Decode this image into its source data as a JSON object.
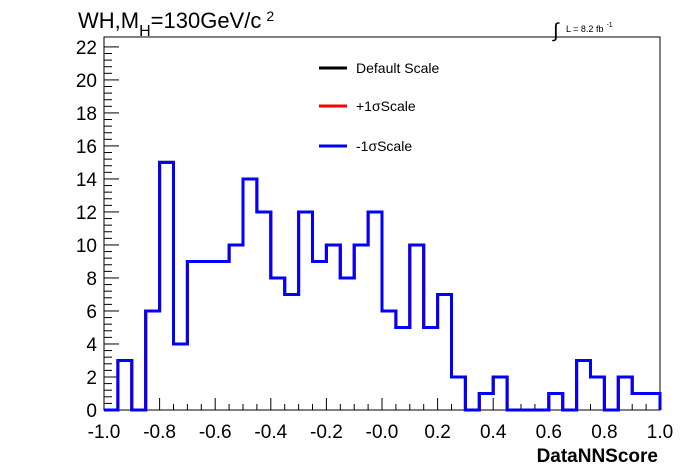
{
  "chart_data": {
    "type": "histogram",
    "title_parts": {
      "pre": "WH,M",
      "sub": "H",
      "mid": "=130GeV/c",
      "sup": "2"
    },
    "lumi_label": {
      "integral": "∫",
      "text": "L = 8.2 fb",
      "sup": "-1"
    },
    "xlabel": "DataNNScore",
    "ylabel": "",
    "xlim": [
      -1.0,
      1.0
    ],
    "ylim": [
      0,
      22.6
    ],
    "bin_width": 0.05,
    "x_tick_labels": [
      "-1.0",
      "-0.8",
      "-0.6",
      "-0.4",
      "-0.2",
      "-0.0",
      "0.2",
      "0.4",
      "0.6",
      "0.8",
      "1.0"
    ],
    "x_tick_values": [
      -1.0,
      -0.8,
      -0.6,
      -0.4,
      -0.2,
      0.0,
      0.2,
      0.4,
      0.6,
      0.8,
      1.0
    ],
    "y_tick_labels": [
      "0",
      "2",
      "4",
      "6",
      "8",
      "10",
      "12",
      "14",
      "16",
      "18",
      "20",
      "22"
    ],
    "y_tick_values": [
      0,
      2,
      4,
      6,
      8,
      10,
      12,
      14,
      16,
      18,
      20,
      22
    ],
    "bin_edges": [
      -1.0,
      -0.95,
      -0.9,
      -0.85,
      -0.8,
      -0.75,
      -0.7,
      -0.65,
      -0.6,
      -0.55,
      -0.5,
      -0.45,
      -0.4,
      -0.35,
      -0.3,
      -0.25,
      -0.2,
      -0.15,
      -0.1,
      -0.05,
      0.0,
      0.05,
      0.1,
      0.15,
      0.2,
      0.25,
      0.3,
      0.35,
      0.4,
      0.45,
      0.5,
      0.55,
      0.6,
      0.65,
      0.7,
      0.75,
      0.8,
      0.85,
      0.9,
      0.95,
      1.0
    ],
    "legend_placement": "top-center",
    "grid": false,
    "series": [
      {
        "name": "Default Scale",
        "color": "#000000",
        "values": [
          0,
          3,
          0,
          6,
          15,
          4,
          9,
          9,
          9,
          10,
          14,
          12,
          8,
          7,
          12,
          9,
          10,
          8,
          10,
          12,
          6,
          5,
          10,
          5,
          7,
          2,
          0,
          1,
          2,
          0,
          0,
          0,
          1,
          0,
          3,
          2,
          0,
          2,
          1,
          1
        ]
      },
      {
        "name": "+1σScale",
        "color": "#ff0000",
        "values": [
          0,
          3,
          0,
          6,
          15,
          4,
          9,
          9,
          9,
          10,
          14,
          12,
          8,
          7,
          12,
          9,
          10,
          8,
          10,
          12,
          6,
          5,
          10,
          5,
          7,
          2,
          0,
          1,
          2,
          0,
          0,
          0,
          1,
          0,
          3,
          2,
          0,
          2,
          1,
          1
        ]
      },
      {
        "name": "-1σScale",
        "color": "#0000ff",
        "values": [
          0,
          3,
          0,
          6,
          15,
          4,
          9,
          9,
          9,
          10,
          14,
          12,
          8,
          7,
          12,
          9,
          10,
          8,
          10,
          12,
          6,
          5,
          10,
          5,
          7,
          2,
          0,
          1,
          2,
          0,
          0,
          0,
          1,
          0,
          3,
          2,
          0,
          2,
          1,
          1
        ]
      }
    ]
  }
}
